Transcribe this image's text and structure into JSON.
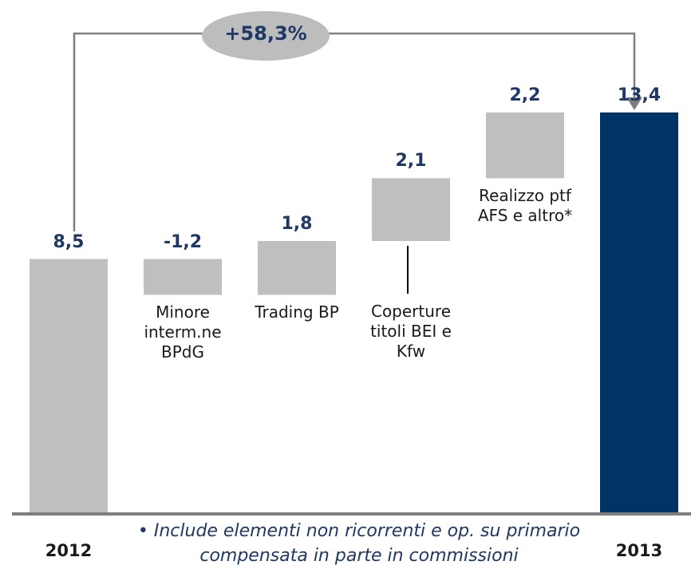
{
  "chart_data": {
    "type": "waterfall",
    "categories": [
      "2012",
      "Minore interm.ne BPdG",
      "Trading BP",
      "Coperture titoli BEI e Kfw",
      "Realizzo ptf AFS e altro*",
      "2013"
    ],
    "values": [
      8.5,
      -1.2,
      1.8,
      2.1,
      2.2,
      13.4
    ],
    "value_labels": [
      "8,5",
      "-1,2",
      "1,8",
      "2,1",
      "2,2",
      "13,4"
    ],
    "colors": [
      "#bfbfbf",
      "#bfbfbf",
      "#bfbfbf",
      "#bfbfbf",
      "#bfbfbf",
      "#003366"
    ],
    "ylim": [
      0,
      17
    ],
    "annotation": "+58,3%",
    "footnote": "• Include elementi non ricorrenti e op. su primario compensata in parte in commissioni"
  }
}
